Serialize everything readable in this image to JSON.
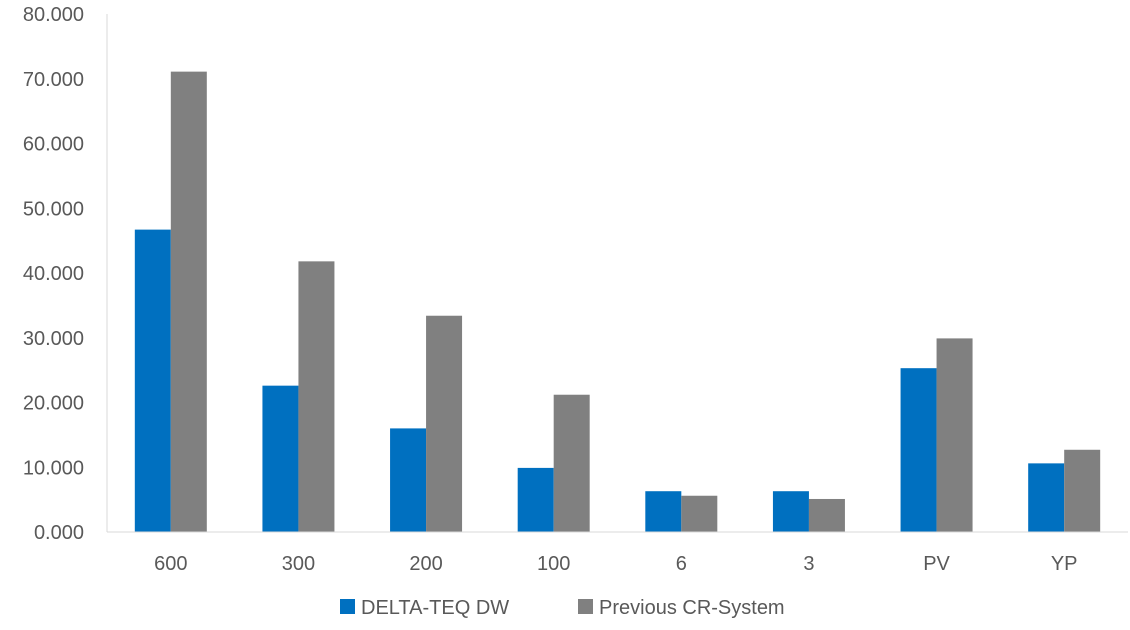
{
  "chart_data": {
    "type": "bar",
    "categories": [
      "600",
      "300",
      "200",
      "100",
      "6",
      "3",
      "PV",
      "YP"
    ],
    "series": [
      {
        "name": "DELTA-TEQ DW",
        "color": "#0070C0",
        "values": [
          46.7,
          22.6,
          16.0,
          9.9,
          6.3,
          6.3,
          25.3,
          10.6
        ]
      },
      {
        "name": "Previous CR-System",
        "color": "#808080",
        "values": [
          71.1,
          41.8,
          33.4,
          21.2,
          5.6,
          5.1,
          29.9,
          12.7
        ]
      }
    ],
    "ylim": [
      0,
      80
    ],
    "yticks": [
      "0.000",
      "10.000",
      "20.000",
      "30.000",
      "40.000",
      "50.000",
      "60.000",
      "70.000",
      "80.000"
    ],
    "grid": false,
    "legend_position": "bottom"
  }
}
